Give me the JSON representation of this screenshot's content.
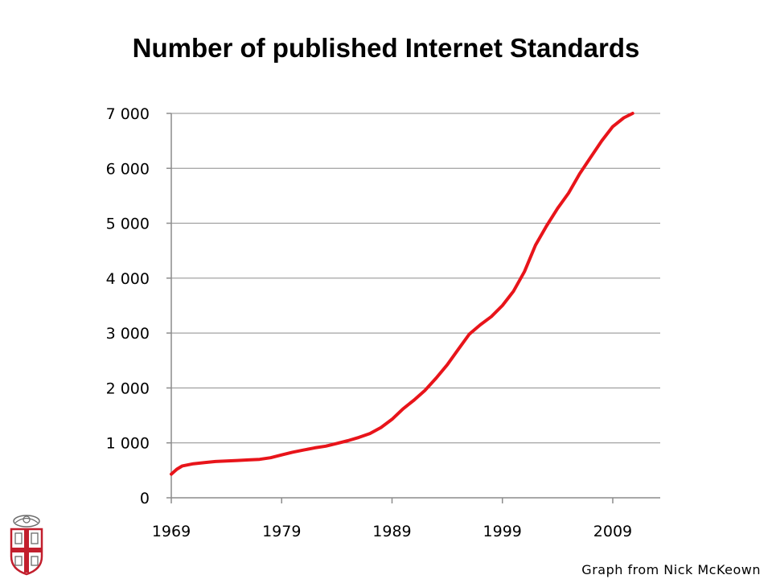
{
  "page": {
    "credit": "Graph from Nick McKeown",
    "logo_name": "university-shield-logo"
  },
  "colors": {
    "line": "#e8141a",
    "grid": "#8c8c8c",
    "axis": "#8c8c8c",
    "logo_red": "#c21f2d",
    "logo_gray": "#6b6b6b"
  },
  "chart_data": {
    "type": "line",
    "title": "Number of published Internet Standards",
    "xlabel": "",
    "ylabel": "",
    "xlim": [
      1969,
      2013.3
    ],
    "ylim": [
      0,
      7000
    ],
    "x_ticks": [
      1969,
      1979,
      1989,
      1999,
      2009
    ],
    "x_tick_labels": [
      "1969",
      "1979",
      "1989",
      "1999",
      "2009"
    ],
    "y_ticks": [
      0,
      1000,
      2000,
      3000,
      4000,
      5000,
      6000,
      7000
    ],
    "y_tick_labels": [
      "0",
      "1 000",
      "2 000",
      "3 000",
      "4 000",
      "5 000",
      "6 000",
      "7 000"
    ],
    "grid": true,
    "legend": "none",
    "series": [
      {
        "x": [
          1969.0,
          1969.5,
          1970,
          1971,
          1972,
          1973,
          1974,
          1975,
          1976,
          1977,
          1978,
          1979,
          1980,
          1981,
          1982,
          1983,
          1984,
          1985,
          1986,
          1987,
          1988,
          1989,
          1990,
          1991,
          1992,
          1993,
          1994,
          1995,
          1996,
          1997,
          1998,
          1999,
          2000,
          2001,
          2002,
          2003,
          2004,
          2005,
          2006,
          2007,
          2008,
          2009,
          2010,
          2010.8
        ],
        "y": [
          430,
          520,
          580,
          620,
          640,
          660,
          670,
          680,
          690,
          700,
          730,
          780,
          830,
          870,
          910,
          940,
          990,
          1040,
          1100,
          1170,
          1280,
          1430,
          1620,
          1780,
          1960,
          2180,
          2420,
          2700,
          2980,
          3150,
          3300,
          3500,
          3760,
          4120,
          4600,
          4950,
          5270,
          5550,
          5900,
          6200,
          6500,
          6760,
          6920,
          7000
        ]
      }
    ]
  }
}
